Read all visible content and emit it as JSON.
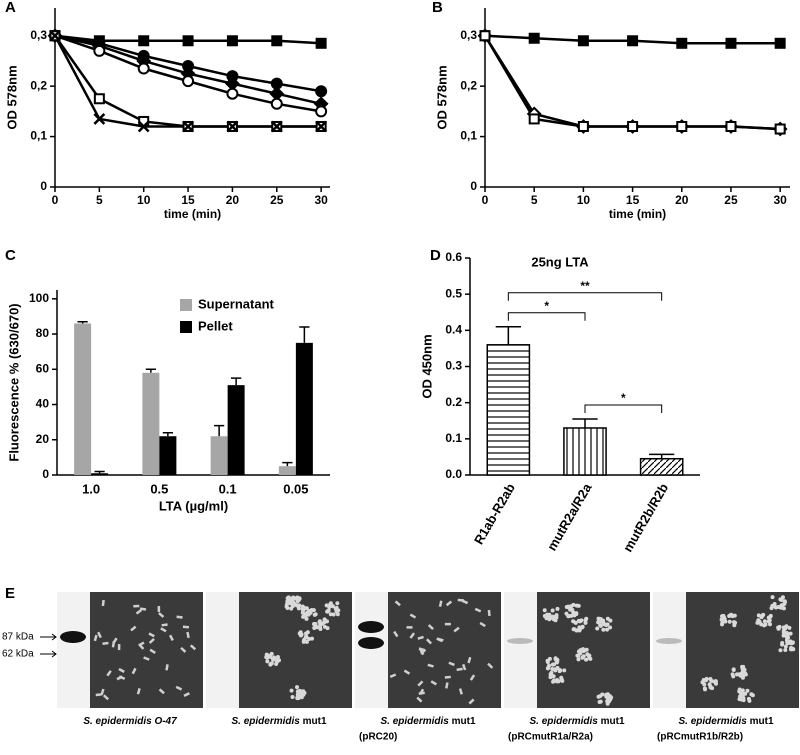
{
  "chart_data": [
    {
      "label": "A",
      "type": "line",
      "x_label": "time (min)",
      "y_label": "OD 578nm",
      "xlim": [
        0,
        31
      ],
      "xticks": [
        0,
        5,
        10,
        15,
        20,
        25,
        30
      ],
      "ylim": [
        0,
        0.355
      ],
      "yticks": [
        0,
        {
          "value": 0.1,
          "label": "0,1"
        },
        {
          "value": 0.2,
          "label": "0,2"
        },
        {
          "value": 0.3,
          "label": "0,3"
        }
      ],
      "x": [
        0,
        5,
        10,
        15,
        20,
        25,
        30
      ],
      "series": [
        {
          "marker": "square-filled",
          "values": [
            0.3,
            0.29,
            0.29,
            0.29,
            0.29,
            0.29,
            0.285
          ]
        },
        {
          "marker": "circle-filled",
          "values": [
            0.3,
            0.285,
            0.26,
            0.24,
            0.22,
            0.205,
            0.19
          ]
        },
        {
          "marker": "diamond-filled",
          "values": [
            0.3,
            0.28,
            0.25,
            0.225,
            0.205,
            0.185,
            0.165
          ]
        },
        {
          "marker": "circle-open",
          "values": [
            0.3,
            0.27,
            0.235,
            0.21,
            0.185,
            0.165,
            0.15
          ]
        },
        {
          "marker": "square-open",
          "values": [
            0.3,
            0.175,
            0.13,
            0.12,
            0.12,
            0.12,
            0.12
          ]
        },
        {
          "marker": "cross",
          "values": [
            0.3,
            0.135,
            0.12,
            0.12,
            0.12,
            0.12,
            0.12
          ]
        }
      ]
    },
    {
      "label": "B",
      "type": "line",
      "x_label": "time (min)",
      "y_label": "OD 578nm",
      "xlim": [
        0,
        31
      ],
      "xticks": [
        0,
        5,
        10,
        15,
        20,
        25,
        30
      ],
      "ylim": [
        0,
        0.355
      ],
      "yticks": [
        0,
        {
          "value": 0.1,
          "label": "0,1"
        },
        {
          "value": 0.2,
          "label": "0,2"
        },
        {
          "value": 0.3,
          "label": "0,3"
        }
      ],
      "x": [
        0,
        5,
        10,
        15,
        20,
        25,
        30
      ],
      "series": [
        {
          "marker": "square-filled",
          "values": [
            0.3,
            0.295,
            0.29,
            0.29,
            0.285,
            0.285,
            0.285
          ]
        },
        {
          "marker": "diamond-open",
          "values": [
            0.3,
            0.145,
            0.12,
            0.12,
            0.12,
            0.12,
            0.115
          ]
        },
        {
          "marker": "square-open",
          "values": [
            0.3,
            0.135,
            0.12,
            0.12,
            0.12,
            0.12,
            0.115
          ]
        }
      ]
    },
    {
      "label": "C",
      "type": "bar",
      "x_label": "LTA (µg/ml)",
      "y_label": "Fluorescence % (630/670)",
      "categories": [
        "1.0",
        "0.5",
        "0.1",
        "0.05"
      ],
      "ylim": [
        0,
        105
      ],
      "yticks": [
        0,
        20,
        40,
        60,
        80,
        100
      ],
      "legend": "upper right",
      "series": [
        {
          "name": "Supernatant",
          "color": "#a6a6a6",
          "values": [
            86,
            58,
            22,
            5
          ],
          "errors": [
            1,
            2,
            6,
            2
          ]
        },
        {
          "name": "Pellet",
          "color": "#000000",
          "values": [
            1,
            22,
            51,
            75
          ],
          "errors": [
            1,
            2,
            4,
            9
          ]
        }
      ]
    },
    {
      "label": "D",
      "type": "bar",
      "title": "25ng LTA",
      "y_label": "OD 450nm",
      "categories": [
        "R1ab-R2ab",
        "mutR2a/R2a",
        "mutR2b/R2b"
      ],
      "ylim": [
        0,
        0.6
      ],
      "yticks": [
        {
          "value": 0,
          "label": "0.0"
        },
        0.1,
        0.2,
        0.3,
        0.4,
        0.5,
        0.6
      ],
      "patterns": [
        "horizontal",
        "vertical",
        "diagonal"
      ],
      "series": [
        {
          "values": [
            0.36,
            0.13,
            0.045
          ],
          "errors": [
            0.05,
            0.025,
            0.012
          ]
        }
      ],
      "significance": [
        {
          "from": 0,
          "to": 1,
          "label": "*"
        },
        {
          "from": 1,
          "to": 2,
          "label": "*"
        },
        {
          "from": 0,
          "to": 2,
          "label": "**"
        }
      ]
    }
  ],
  "figure_e": {
    "label": "E",
    "markers": [
      "87 kDa",
      "62 kDa"
    ],
    "panels": [
      {
        "band": "strong",
        "italic": "S. epidermidis O-47"
      },
      {
        "band": "none",
        "italic": "S. epidermidis",
        "text": "mut1"
      },
      {
        "band": "double",
        "italic": "S. epidermidis",
        "text": "mut1",
        "plasmid": "(pRC20)"
      },
      {
        "band": "faint",
        "italic": "S. epidermidis",
        "text": "mut1",
        "plasmid": "(pRCmutR1a/R2a)"
      },
      {
        "band": "faint",
        "italic": "S. epidermidis",
        "text": "mut1",
        "plasmid": "(pRCmutR1b/R2b)"
      }
    ]
  }
}
